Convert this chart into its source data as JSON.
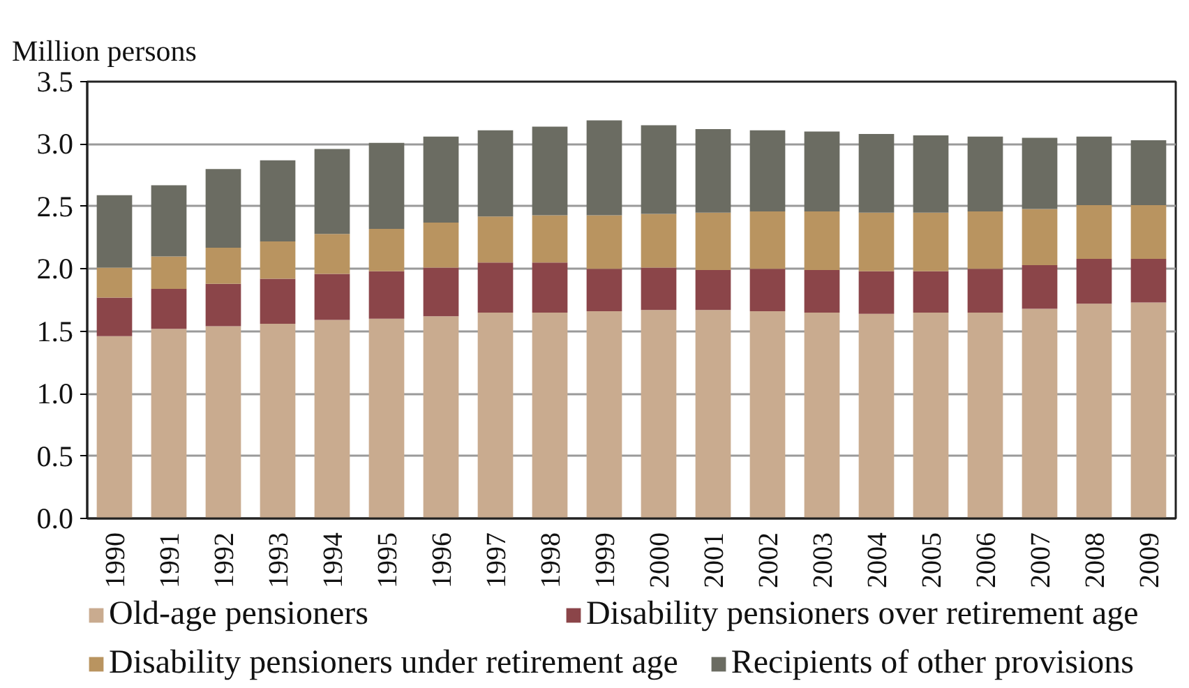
{
  "chart_data": {
    "type": "bar",
    "stacked": true,
    "ylabel": "Million persons",
    "categories": [
      "1990",
      "1991",
      "1992",
      "1993",
      "1994",
      "1995",
      "1996",
      "1997",
      "1998",
      "1999",
      "2000",
      "2001",
      "2002",
      "2003",
      "2004",
      "2005",
      "2006",
      "2007",
      "2008",
      "2009"
    ],
    "series": [
      {
        "name": "Old-age pensioners",
        "color": "#c9ab8f",
        "values": [
          1.46,
          1.52,
          1.54,
          1.56,
          1.59,
          1.6,
          1.62,
          1.65,
          1.65,
          1.66,
          1.67,
          1.67,
          1.66,
          1.65,
          1.64,
          1.65,
          1.65,
          1.68,
          1.72,
          1.73
        ]
      },
      {
        "name": "Disability pensioners over retirement age",
        "color": "#8b4549",
        "values": [
          0.31,
          0.32,
          0.34,
          0.36,
          0.37,
          0.38,
          0.39,
          0.4,
          0.4,
          0.34,
          0.34,
          0.32,
          0.34,
          0.34,
          0.34,
          0.33,
          0.35,
          0.35,
          0.36,
          0.35
        ]
      },
      {
        "name": "Disability pensioners under retirement age",
        "color": "#b99460",
        "values": [
          0.24,
          0.26,
          0.29,
          0.3,
          0.32,
          0.34,
          0.36,
          0.37,
          0.38,
          0.43,
          0.43,
          0.46,
          0.46,
          0.47,
          0.47,
          0.47,
          0.46,
          0.45,
          0.43,
          0.43
        ]
      },
      {
        "name": "Recipients of other provisions",
        "color": "#6b6c62",
        "values": [
          0.58,
          0.57,
          0.63,
          0.65,
          0.68,
          0.69,
          0.69,
          0.69,
          0.71,
          0.76,
          0.71,
          0.67,
          0.65,
          0.64,
          0.63,
          0.62,
          0.6,
          0.57,
          0.55,
          0.52
        ]
      }
    ],
    "ylim": [
      0,
      3.5
    ],
    "yticks": [
      {
        "value": 0,
        "label": "0.0"
      },
      0.5,
      {
        "value": 1,
        "label": "1.0"
      },
      1.5,
      {
        "value": 2,
        "label": "2.0"
      },
      2.5,
      {
        "value": 3,
        "label": "3.0"
      },
      3.5
    ],
    "grid": "y",
    "legend": "bottom"
  }
}
